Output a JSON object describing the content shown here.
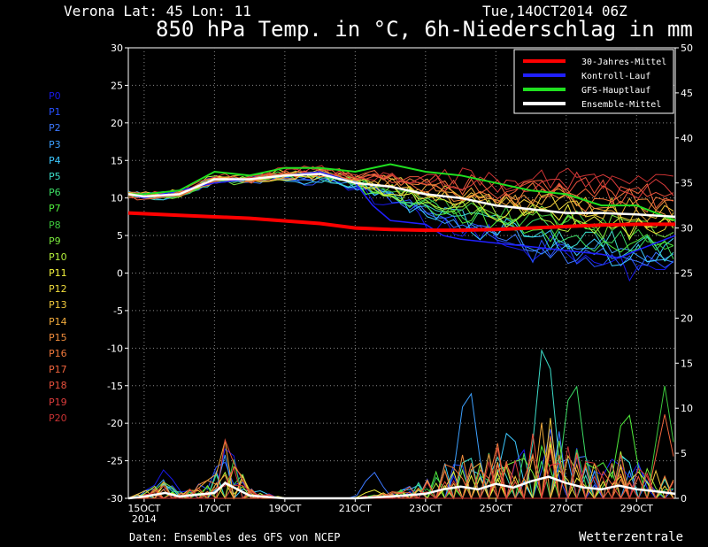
{
  "header": {
    "location": "Verona   Lat: 45 Lon: 11",
    "run": "Tue,14OCT2014 06Z",
    "title": "850 hPa Temp. in °C, 6h-Niederschlag in mm"
  },
  "footer": {
    "source": "Daten: Ensembles des GFS von NCEP",
    "brand": "Wetterzentrale"
  },
  "members": [
    {
      "label": "P0",
      "color": "#1818e8"
    },
    {
      "label": "P1",
      "color": "#2850ff"
    },
    {
      "label": "P2",
      "color": "#3c78ff"
    },
    {
      "label": "P3",
      "color": "#3ca0ff"
    },
    {
      "label": "P4",
      "color": "#3cc8ff"
    },
    {
      "label": "P5",
      "color": "#3cdcc8"
    },
    {
      "label": "P6",
      "color": "#3cdc64"
    },
    {
      "label": "P7",
      "color": "#50f03c"
    },
    {
      "label": "P8",
      "color": "#3cc83c"
    },
    {
      "label": "P9",
      "color": "#78e63c"
    },
    {
      "label": "P10",
      "color": "#b4f03c"
    },
    {
      "label": "P11",
      "color": "#f0f03c"
    },
    {
      "label": "P12",
      "color": "#f0dc3c"
    },
    {
      "label": "P13",
      "color": "#f0c83c"
    },
    {
      "label": "P14",
      "color": "#f0aa3c"
    },
    {
      "label": "P15",
      "color": "#f08c3c"
    },
    {
      "label": "P16",
      "color": "#f0783c"
    },
    {
      "label": "P17",
      "color": "#f0643c"
    },
    {
      "label": "P18",
      "color": "#e6503c"
    },
    {
      "label": "P19",
      "color": "#dc3c3c"
    },
    {
      "label": "P20",
      "color": "#c83232"
    }
  ],
  "chart_data": {
    "type": "line",
    "x_ticks": [
      {
        "x": 0,
        "label": "15OCT",
        "sublabel": "2014"
      },
      {
        "x": 2,
        "label": "17OCT",
        "sublabel": ""
      },
      {
        "x": 4,
        "label": "19OCT",
        "sublabel": ""
      },
      {
        "x": 6,
        "label": "21OCT",
        "sublabel": ""
      },
      {
        "x": 8,
        "label": "23OCT",
        "sublabel": ""
      },
      {
        "x": 10,
        "label": "25OCT",
        "sublabel": ""
      },
      {
        "x": 12,
        "label": "27OCT",
        "sublabel": ""
      },
      {
        "x": 14,
        "label": "29OCT",
        "sublabel": ""
      }
    ],
    "xlim": [
      -0.45,
      15.1
    ],
    "ylim_left": [
      -30,
      30
    ],
    "left_ticks": [
      30,
      25,
      20,
      15,
      10,
      5,
      0,
      -5,
      -10,
      -15,
      -20,
      -25,
      -30
    ],
    "ylim_right": [
      0,
      50
    ],
    "right_ticks": [
      50,
      45,
      40,
      35,
      30,
      25,
      20,
      15,
      10,
      5,
      0
    ],
    "grid": true,
    "legend": {
      "position": "top-right",
      "entries": [
        {
          "name": "30-Jahres-Mittel",
          "color": "#ff0000"
        },
        {
          "name": "Kontroll-Lauf",
          "color": "#2020ff"
        },
        {
          "name": "GFS-Hauptlauf",
          "color": "#20e020"
        },
        {
          "name": "Ensemble-Mittel",
          "color": "#ffffff"
        }
      ]
    },
    "temperature": {
      "axis": "left",
      "climate_mean": {
        "x": [
          -0.45,
          1,
          3,
          5,
          6,
          7,
          8,
          9,
          10,
          11,
          12,
          13,
          14,
          15.1
        ],
        "y": [
          8,
          7.7,
          7.3,
          6.6,
          6.0,
          5.8,
          5.7,
          5.7,
          5.8,
          6.0,
          6.2,
          6.4,
          6.5,
          6.5
        ]
      },
      "ensemble_mean": {
        "x": [
          -0.45,
          0,
          1,
          2,
          3,
          4,
          5,
          6,
          7,
          8,
          9,
          10,
          11,
          12,
          13,
          14,
          15.1
        ],
        "y": [
          10.5,
          10.2,
          10.5,
          12.5,
          12.5,
          13.0,
          13.2,
          12.0,
          11.5,
          10.5,
          10.0,
          9.0,
          8.5,
          8.0,
          8.0,
          7.8,
          7.5
        ]
      },
      "control_run": {
        "x": [
          -0.45,
          0,
          1,
          2,
          3,
          4,
          5,
          6,
          6.5,
          7,
          8,
          8.5,
          9,
          10,
          11,
          12,
          13,
          13.5,
          14,
          15.1
        ],
        "y": [
          10.5,
          10.0,
          11.0,
          12.0,
          12.5,
          13.0,
          13.5,
          12.0,
          9.0,
          7.0,
          6.5,
          5.0,
          4.5,
          4.0,
          3.5,
          3.0,
          2.5,
          2.0,
          3.0,
          5.0
        ]
      },
      "main_run": {
        "x": [
          -0.45,
          0,
          1,
          2,
          3,
          4,
          5,
          6,
          7,
          8,
          9,
          10,
          11,
          12,
          13,
          14,
          15.1
        ],
        "y": [
          10.5,
          10.5,
          11.0,
          13.5,
          13.0,
          14.0,
          14.0,
          13.5,
          14.5,
          13.5,
          13.0,
          12.0,
          11.0,
          10.5,
          9.0,
          9.0,
          7.0
        ]
      },
      "ensemble_envelope_max": {
        "x": [
          -0.45,
          2,
          4,
          6,
          8,
          10,
          12,
          14,
          15.1
        ],
        "y": [
          11,
          14,
          15,
          15,
          14,
          13,
          14,
          13.5,
          13
        ]
      },
      "ensemble_envelope_min": {
        "x": [
          -0.45,
          2,
          4,
          6,
          8,
          10,
          12,
          14,
          15.1
        ],
        "y": [
          9.5,
          10,
          11.5,
          9.5,
          6,
          3.5,
          0.5,
          -1.5,
          -1
        ]
      }
    },
    "precipitation": {
      "axis": "right",
      "unit": "mm",
      "peaks": [
        {
          "x": 0.6,
          "y": 3.5
        },
        {
          "x": 2.2,
          "y": 5.0
        },
        {
          "x": 6.5,
          "y": 3.2
        },
        {
          "x": 9.2,
          "y": 14.5
        },
        {
          "x": 10.4,
          "y": 9.0
        },
        {
          "x": 11.4,
          "y": 20.5
        },
        {
          "x": 12.2,
          "y": 15.5
        },
        {
          "x": 13.7,
          "y": 11.5
        },
        {
          "x": 14.8,
          "y": 12.5
        }
      ],
      "ensemble_mean": {
        "x": [
          -0.45,
          0,
          0.6,
          1,
          2,
          2.3,
          3,
          4,
          6,
          7,
          8,
          8.5,
          9,
          9.5,
          10,
          10.5,
          11,
          11.5,
          12,
          12.5,
          13,
          13.5,
          14,
          14.5,
          15.1
        ],
        "y": [
          0,
          0.2,
          0.6,
          0.2,
          0.6,
          1.7,
          0.3,
          0,
          0,
          0.2,
          0.5,
          1.0,
          1.3,
          1.0,
          1.6,
          1.2,
          1.9,
          2.4,
          1.7,
          1.2,
          1.0,
          1.4,
          1.0,
          0.8,
          0.5
        ]
      }
    }
  }
}
